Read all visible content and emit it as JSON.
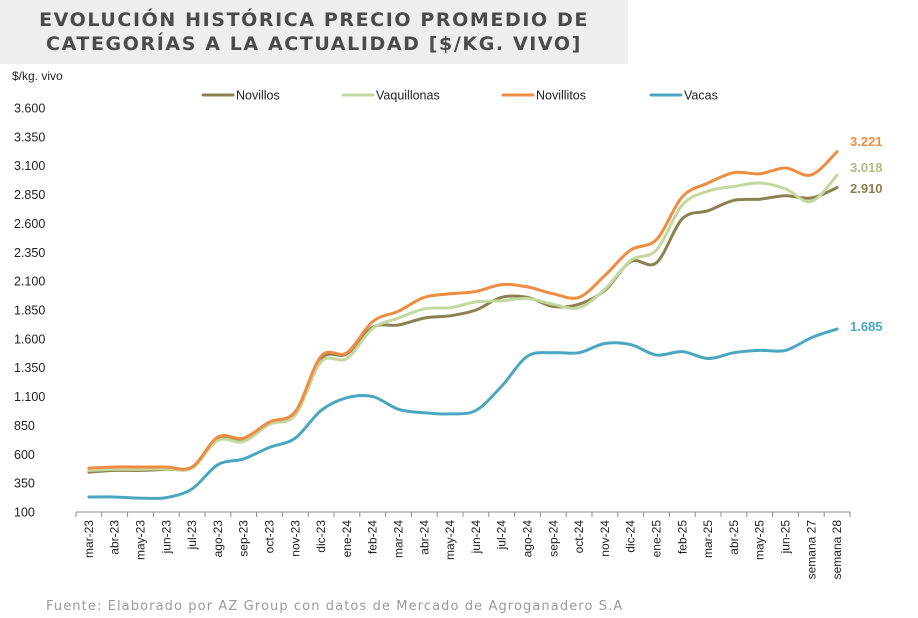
{
  "title_lines": [
    "EVOLUCIÓN HISTÓRICA PRECIO PROMEDIO DE",
    "CATEGORÍAS A LA ACTUALIDAD [$/KG. VIVO]"
  ],
  "source": "Fuente: Elaborado por AZ Group con datos de Mercado de Agroganadero S.A",
  "chart_data": {
    "type": "line",
    "title": "EVOLUCIÓN HISTÓRICA PRECIO PROMEDIO DE CATEGORÍAS A LA ACTUALIDAD [$/KG. VIVO]",
    "ylabel": "$/kg. vivo",
    "xlabel": "",
    "ylim": [
      100,
      3600
    ],
    "yticks": [
      100,
      350,
      600,
      850,
      1100,
      1350,
      1600,
      1850,
      2100,
      2350,
      2600,
      2850,
      3100,
      3350,
      3600
    ],
    "ytick_labels": [
      "100",
      "350",
      "600",
      "850",
      "1.100",
      "1.350",
      "1.600",
      "1.850",
      "2.100",
      "2.350",
      "2.600",
      "2.850",
      "3.100",
      "3.350",
      "3.600"
    ],
    "categories": [
      "mar-23",
      "abr-23",
      "may-23",
      "jun-23",
      "jul-23",
      "ago-23",
      "sep-23",
      "oct-23",
      "nov-23",
      "dic-23",
      "ene-24",
      "feb-24",
      "mar-24",
      "abr-24",
      "may-24",
      "jun-24",
      "jul-24",
      "ago-24",
      "sep-24",
      "oct-24",
      "nov-24",
      "dic-24",
      "ene-25",
      "feb-25",
      "mar-25",
      "abr-25",
      "may-25",
      "jun-25",
      "semana 27",
      "semana 28"
    ],
    "grid": false,
    "legend_position": "top",
    "series": [
      {
        "name": "Novillos",
        "color": "#8b8150",
        "values": [
          445,
          460,
          460,
          470,
          490,
          730,
          720,
          870,
          960,
          1430,
          1470,
          1700,
          1720,
          1780,
          1800,
          1850,
          1960,
          1960,
          1880,
          1900,
          2020,
          2270,
          2260,
          2640,
          2710,
          2800,
          2810,
          2840,
          2820,
          2910
        ],
        "end_label": "2.910"
      },
      {
        "name": "Vaquillonas",
        "color": "#c3d89f",
        "values": [
          460,
          470,
          470,
          475,
          480,
          720,
          710,
          860,
          940,
          1400,
          1430,
          1690,
          1780,
          1860,
          1870,
          1920,
          1930,
          1950,
          1900,
          1870,
          2030,
          2280,
          2370,
          2760,
          2880,
          2920,
          2950,
          2900,
          2790,
          3018
        ],
        "end_label": "3.018"
      },
      {
        "name": "Novillitos",
        "color": "#ee8c43",
        "values": [
          480,
          490,
          490,
          490,
          490,
          750,
          740,
          880,
          970,
          1450,
          1480,
          1750,
          1840,
          1960,
          1990,
          2010,
          2070,
          2050,
          1990,
          1960,
          2150,
          2370,
          2460,
          2830,
          2950,
          3040,
          3030,
          3080,
          3020,
          3221
        ],
        "end_label": "3.221"
      },
      {
        "name": "Vacas",
        "color": "#4ba7bf",
        "values": [
          230,
          230,
          220,
          225,
          300,
          510,
          560,
          660,
          740,
          980,
          1090,
          1100,
          990,
          960,
          950,
          980,
          1190,
          1450,
          1480,
          1480,
          1560,
          1550,
          1460,
          1490,
          1430,
          1480,
          1500,
          1500,
          1610,
          1685
        ],
        "end_label": "1.685"
      }
    ]
  }
}
